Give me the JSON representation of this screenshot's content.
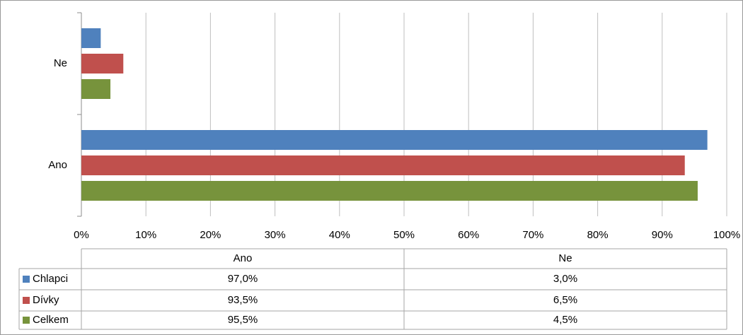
{
  "chart_data": {
    "type": "bar",
    "orientation": "horizontal",
    "categories": [
      "Ano",
      "Ne"
    ],
    "series": [
      {
        "name": "Chlapci",
        "color": "#4f81bd",
        "values": [
          97.0,
          3.0
        ],
        "value_labels": [
          "97,0%",
          "3,0%"
        ]
      },
      {
        "name": "Dívky",
        "color": "#c0504d",
        "values": [
          93.5,
          6.5
        ],
        "value_labels": [
          "93,5%",
          "6,5%"
        ]
      },
      {
        "name": "Celkem",
        "color": "#77933c",
        "values": [
          95.5,
          4.5
        ],
        "value_labels": [
          "95,5%",
          "4,5%"
        ]
      }
    ],
    "xlim": [
      0,
      100
    ],
    "xticks": [
      {
        "value": 0,
        "label": "0%"
      },
      {
        "value": 10,
        "label": "10%"
      },
      {
        "value": 20,
        "label": "20%"
      },
      {
        "value": 30,
        "label": "30%"
      },
      {
        "value": 40,
        "label": "40%"
      },
      {
        "value": 50,
        "label": "50%"
      },
      {
        "value": 60,
        "label": "60%"
      },
      {
        "value": 70,
        "label": "70%"
      },
      {
        "value": 80,
        "label": "80%"
      },
      {
        "value": 90,
        "label": "90%"
      },
      {
        "value": 100,
        "label": "100%"
      }
    ],
    "grid": true,
    "data_table": true
  }
}
